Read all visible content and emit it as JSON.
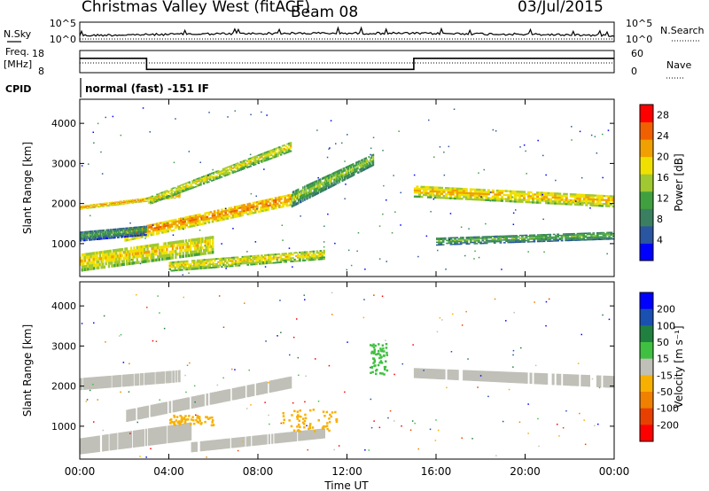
{
  "header": {
    "title": "Christmas Valley West (fitACF)",
    "beam": "Beam 08",
    "date": "03/Jul/2015"
  },
  "labels": {
    "nsky": "N.Sky",
    "nsearch": "N.Search",
    "freq": "Freq.",
    "mhz": "[MHz]",
    "nave": "Nave",
    "cpid": "CPID",
    "cpid_text": "normal (fast) -151 IF",
    "x_title": "Time UT",
    "power_ylabel": "Slant Range [km]",
    "vel_ylabel": "Slant Range [km]",
    "power_cbar": "Power [dB]",
    "vel_cbar": "Velocity [m s⁻¹]"
  },
  "colors": {
    "power_scale": [
      "#0000ff",
      "#2a55a0",
      "#3a8060",
      "#40a040",
      "#a0c830",
      "#f0e000",
      "#f0a000",
      "#f06000",
      "#ff0000"
    ],
    "velocity_scale": [
      "#0000ff",
      "#1a50b0",
      "#208040",
      "#40c040",
      "#c0c0b8",
      "#f8b000",
      "#f08000",
      "#e84000",
      "#ff0000"
    ],
    "ground_scatter": "#c0c0b8"
  },
  "chart_data": [
    {
      "type": "line",
      "name": "noise",
      "y_ticks_left": [
        "10^5",
        "10^0"
      ],
      "y_ticks_right": [
        "10^5",
        "10^0"
      ]
    },
    {
      "type": "line",
      "name": "frequency",
      "y_ticks_left": [
        "18",
        "8"
      ],
      "y_ticks_right": [
        "60",
        "0"
      ],
      "freq_steps": [
        {
          "from": 0,
          "to": 3.0,
          "value": 14.5
        },
        {
          "from": 3.0,
          "to": 15.0,
          "value": 9.5
        },
        {
          "from": 15.0,
          "to": 24.0,
          "value": 14.5
        }
      ],
      "ylim": [
        8,
        18
      ]
    },
    {
      "type": "heatmap",
      "name": "power",
      "x_ticks": [
        "00:00",
        "04:00",
        "08:00",
        "12:00",
        "16:00",
        "20:00",
        "00:00"
      ],
      "xlim": [
        0,
        24
      ],
      "y_ticks": [
        "1000",
        "2000",
        "3000",
        "4000"
      ],
      "ylim": [
        180,
        4600
      ],
      "colorbar_ticks": [
        "4",
        "8",
        "12",
        "16",
        "20",
        "24",
        "28"
      ],
      "colorbar_range": [
        0,
        30
      ],
      "bands": [
        {
          "t0": 0.0,
          "t1": 4.5,
          "r0": 1850,
          "r1": 2150,
          "r2": 1950,
          "r3": 2250,
          "level": 24
        },
        {
          "t0": 3.0,
          "t1": 9.5,
          "r0": 1950,
          "r1": 3300,
          "r2": 2150,
          "r3": 3550,
          "level": 19
        },
        {
          "t0": 2.0,
          "t1": 9.5,
          "r0": 1050,
          "r1": 1950,
          "r2": 1350,
          "r3": 2250,
          "level": 25
        },
        {
          "t0": 0.0,
          "t1": 6.0,
          "r0": 300,
          "r1": 750,
          "r2": 750,
          "r3": 1200,
          "level": 21
        },
        {
          "t0": 9.5,
          "t1": 13.2,
          "r0": 1900,
          "r1": 2950,
          "r2": 2300,
          "r3": 3250,
          "level": 15
        },
        {
          "t0": 15.0,
          "t1": 24.0,
          "r0": 2150,
          "r1": 1900,
          "r2": 2450,
          "r3": 2200,
          "level": 22
        },
        {
          "t0": 16.0,
          "t1": 24.0,
          "r0": 950,
          "r1": 1100,
          "r2": 1150,
          "r3": 1300,
          "level": 13
        },
        {
          "t0": 4.0,
          "t1": 11.0,
          "r0": 300,
          "r1": 600,
          "r2": 550,
          "r3": 850,
          "level": 20
        },
        {
          "t0": 0.0,
          "t1": 3.0,
          "r0": 1050,
          "r1": 1200,
          "r2": 1300,
          "r3": 1450,
          "level": 11
        }
      ]
    },
    {
      "type": "heatmap",
      "name": "velocity",
      "x_ticks": [
        "00:00",
        "04:00",
        "08:00",
        "12:00",
        "16:00",
        "20:00",
        "00:00"
      ],
      "xlim": [
        0,
        24
      ],
      "y_ticks": [
        "1000",
        "2000",
        "3000",
        "4000"
      ],
      "ylim": [
        180,
        4600
      ],
      "colorbar_ticks": [
        "200",
        "100",
        "50",
        "15",
        "-15",
        "-50",
        "-100",
        "-200"
      ],
      "ground_bands": [
        {
          "t0": 0.0,
          "t1": 4.5,
          "r0": 1900,
          "r1": 2100,
          "r2": 2200,
          "r3": 2400
        },
        {
          "t0": 2.0,
          "t1": 9.5,
          "r0": 1100,
          "r1": 1950,
          "r2": 1400,
          "r3": 2250
        },
        {
          "t0": 15.0,
          "t1": 24.0,
          "r0": 2200,
          "r1": 1950,
          "r2": 2450,
          "r3": 2250
        },
        {
          "t0": 0.0,
          "t1": 5.0,
          "r0": 300,
          "r1": 650,
          "r2": 700,
          "r3": 1100
        },
        {
          "t0": 5.0,
          "t1": 11.0,
          "r0": 350,
          "r1": 700,
          "r2": 600,
          "r3": 950
        }
      ],
      "iono_patches": [
        {
          "t0": 9.0,
          "t1": 11.5,
          "r0": 900,
          "r1": 1450,
          "color": "#f8b000"
        },
        {
          "t0": 13.0,
          "t1": 13.8,
          "r0": 2300,
          "r1": 3100,
          "color": "#40c040"
        },
        {
          "t0": 4.0,
          "t1": 6.0,
          "r0": 1050,
          "r1": 1300,
          "color": "#f8b000"
        }
      ]
    }
  ]
}
